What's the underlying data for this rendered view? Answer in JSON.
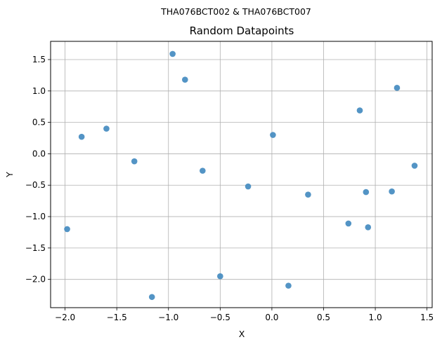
{
  "figure": {
    "suptitle": "THA076BCT002 & THA076BCT007"
  },
  "chart_data": {
    "type": "scatter",
    "title": "Random Datapoints",
    "xlabel": "X",
    "ylabel": "Y",
    "xlim": [
      -2.14,
      1.55
    ],
    "ylim": [
      -2.45,
      1.79
    ],
    "xticks": [
      -2.0,
      -1.5,
      -1.0,
      -0.5,
      0.0,
      0.5,
      1.0,
      1.5
    ],
    "xtick_labels": [
      "−2.0",
      "−1.5",
      "−1.0",
      "−0.5",
      "0.0",
      "0.5",
      "1.0",
      "1.5"
    ],
    "yticks": [
      -2.0,
      -1.5,
      -1.0,
      -0.5,
      0.0,
      0.5,
      1.0,
      1.5
    ],
    "ytick_labels": [
      "−2.0",
      "−1.5",
      "−1.0",
      "−0.5",
      "0.0",
      "0.5",
      "1.0",
      "1.5"
    ],
    "grid": true,
    "marker_color": "#4a8ec2",
    "points": [
      {
        "x": -1.98,
        "y": -1.2
      },
      {
        "x": -1.84,
        "y": 0.27
      },
      {
        "x": -1.6,
        "y": 0.4
      },
      {
        "x": -1.33,
        "y": -0.12
      },
      {
        "x": -1.16,
        "y": -2.28
      },
      {
        "x": -0.96,
        "y": 1.59
      },
      {
        "x": -0.84,
        "y": 1.18
      },
      {
        "x": -0.67,
        "y": -0.27
      },
      {
        "x": -0.5,
        "y": -1.95
      },
      {
        "x": -0.23,
        "y": -0.52
      },
      {
        "x": 0.01,
        "y": 0.3
      },
      {
        "x": 0.16,
        "y": -2.1
      },
      {
        "x": 0.35,
        "y": -0.65
      },
      {
        "x": 0.74,
        "y": -1.11
      },
      {
        "x": 0.85,
        "y": 0.69
      },
      {
        "x": 0.91,
        "y": -0.61
      },
      {
        "x": 0.93,
        "y": -1.17
      },
      {
        "x": 1.16,
        "y": -0.6
      },
      {
        "x": 1.21,
        "y": 1.05
      },
      {
        "x": 1.38,
        "y": -0.19
      }
    ]
  }
}
